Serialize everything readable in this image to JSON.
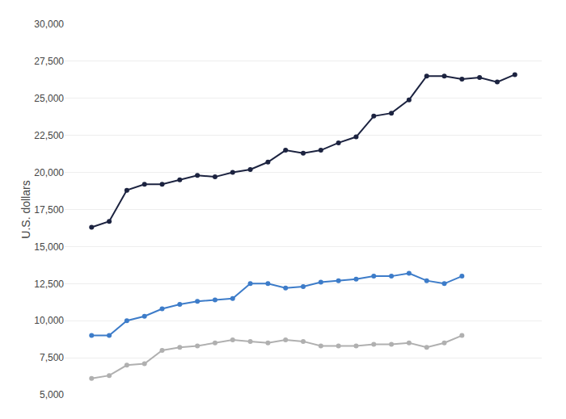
{
  "chart_data": {
    "type": "line",
    "ylabel": "U.S. dollars",
    "categories": [
      null,
      null,
      null,
      null,
      null,
      null,
      null,
      null,
      null,
      null,
      null,
      null,
      null,
      null,
      null,
      null,
      null,
      null,
      null,
      null,
      null,
      null,
      null,
      null,
      null
    ],
    "series": [
      {
        "color": "#1c2340",
        "marker": "circle",
        "values": [
          16300,
          16700,
          18800,
          19200,
          19200,
          19500,
          19800,
          19700,
          20000,
          20200,
          20700,
          21500,
          21300,
          21500,
          22000,
          22400,
          23800,
          24000,
          24900,
          26500,
          26500,
          26300,
          26400,
          26100,
          26600
        ]
      },
      {
        "color": "#3d7cc9",
        "marker": "circle",
        "values": [
          9000,
          9000,
          10000,
          10300,
          10800,
          11100,
          11300,
          11400,
          11500,
          12500,
          12500,
          12200,
          12300,
          12600,
          12700,
          12800,
          13000,
          13000,
          13200,
          12700,
          12500,
          13000,
          null,
          null,
          null
        ]
      },
      {
        "color": "#b0b0b0",
        "marker": "circle",
        "values": [
          6100,
          6300,
          7000,
          7100,
          8000,
          8200,
          8300,
          8500,
          8700,
          8600,
          8500,
          8700,
          8600,
          8300,
          8300,
          8300,
          8400,
          8400,
          8500,
          8200,
          8500,
          9000,
          null,
          null,
          null
        ]
      }
    ],
    "ylim": [
      5000,
      30000
    ],
    "yticks": [
      {
        "value": 5000,
        "label": "5,000"
      },
      {
        "value": 7500,
        "label": "7,500"
      },
      {
        "value": 10000,
        "label": "10,000"
      },
      {
        "value": 12500,
        "label": "12,500"
      },
      {
        "value": 15000,
        "label": "15,000"
      },
      {
        "value": 17500,
        "label": "17,500"
      },
      {
        "value": 20000,
        "label": "20,000"
      },
      {
        "value": 22500,
        "label": "22,500"
      },
      {
        "value": 25000,
        "label": "25,000"
      },
      {
        "value": 27500,
        "label": "27,500"
      },
      {
        "value": 30000,
        "label": "30,000"
      }
    ],
    "grid": true,
    "tick_labels": "y"
  }
}
